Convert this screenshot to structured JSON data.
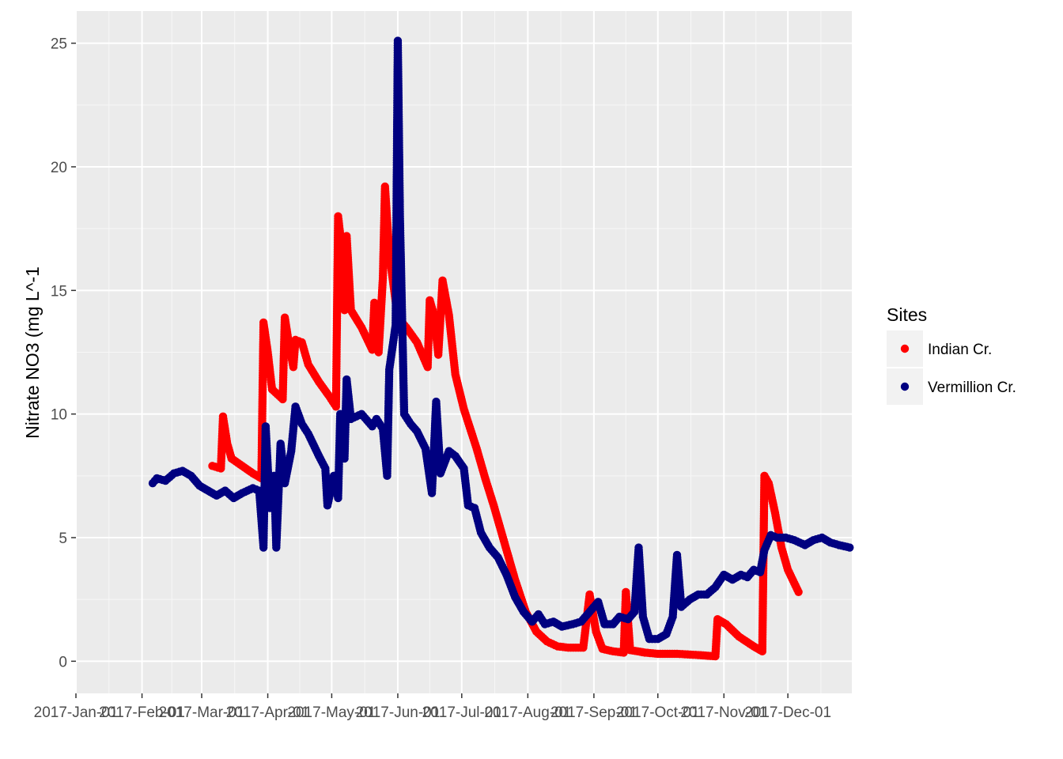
{
  "chart_data": {
    "type": "scatter",
    "title": "",
    "xlabel": "",
    "ylabel": "Nitrate NO3 (mg L^-1",
    "xlim": [
      "2017-01-01",
      "2017-12-31"
    ],
    "ylim": [
      -1.3,
      26.3
    ],
    "grid": true,
    "legend_position": "right",
    "legend_title": "Sites",
    "x_ticks": [
      "2017-Jan-01",
      "2017-Feb-01",
      "2017-Mar-01",
      "2017-Apr-01",
      "2017-May-01",
      "2017-Jun-01",
      "2017-Jul-01",
      "2017-Aug-01",
      "2017-Sep-01",
      "2017-Oct-01",
      "2017-Nov-01",
      "2017-Dec-01"
    ],
    "x_tick_dates": [
      "2017-01-01",
      "2017-02-01",
      "2017-03-01",
      "2017-04-01",
      "2017-05-01",
      "2017-06-01",
      "2017-07-01",
      "2017-08-01",
      "2017-09-01",
      "2017-10-01",
      "2017-11-01",
      "2017-12-01"
    ],
    "y_ticks": [
      0,
      5,
      10,
      15,
      20,
      25
    ],
    "series": [
      {
        "name": "Indian Cr.",
        "color": "#ff0000",
        "points": [
          [
            "2017-03-06",
            7.9
          ],
          [
            "2017-03-10",
            7.8
          ],
          [
            "2017-03-11",
            9.9
          ],
          [
            "2017-03-13",
            8.8
          ],
          [
            "2017-03-15",
            8.2
          ],
          [
            "2017-03-20",
            7.9
          ],
          [
            "2017-03-25",
            7.6
          ],
          [
            "2017-03-29",
            7.4
          ],
          [
            "2017-03-30",
            13.7
          ],
          [
            "2017-04-01",
            12.5
          ],
          [
            "2017-04-03",
            11.0
          ],
          [
            "2017-04-08",
            10.6
          ],
          [
            "2017-04-09",
            13.9
          ],
          [
            "2017-04-11",
            12.8
          ],
          [
            "2017-04-13",
            11.9
          ],
          [
            "2017-04-14",
            13.0
          ],
          [
            "2017-04-17",
            12.9
          ],
          [
            "2017-04-20",
            12.0
          ],
          [
            "2017-04-25",
            11.3
          ],
          [
            "2017-04-30",
            10.7
          ],
          [
            "2017-05-03",
            10.3
          ],
          [
            "2017-05-04",
            18.0
          ],
          [
            "2017-05-06",
            16.5
          ],
          [
            "2017-05-07",
            14.2
          ],
          [
            "2017-05-08",
            17.2
          ],
          [
            "2017-05-10",
            14.2
          ],
          [
            "2017-05-15",
            13.5
          ],
          [
            "2017-05-20",
            12.6
          ],
          [
            "2017-05-21",
            14.5
          ],
          [
            "2017-05-23",
            12.5
          ],
          [
            "2017-05-25",
            15.5
          ],
          [
            "2017-05-26",
            19.2
          ],
          [
            "2017-05-28",
            16.5
          ],
          [
            "2017-06-01",
            13.9
          ],
          [
            "2017-06-05",
            13.5
          ],
          [
            "2017-06-10",
            12.9
          ],
          [
            "2017-06-15",
            11.9
          ],
          [
            "2017-06-16",
            14.6
          ],
          [
            "2017-06-18",
            14.0
          ],
          [
            "2017-06-20",
            12.4
          ],
          [
            "2017-06-22",
            15.4
          ],
          [
            "2017-06-25",
            14.0
          ],
          [
            "2017-06-28",
            11.6
          ],
          [
            "2017-07-02",
            10.2
          ],
          [
            "2017-07-08",
            8.6
          ],
          [
            "2017-07-12",
            7.4
          ],
          [
            "2017-07-16",
            6.3
          ],
          [
            "2017-07-21",
            4.8
          ],
          [
            "2017-07-26",
            3.3
          ],
          [
            "2017-07-31",
            2.0
          ],
          [
            "2017-08-05",
            1.2
          ],
          [
            "2017-08-10",
            0.8
          ],
          [
            "2017-08-15",
            0.6
          ],
          [
            "2017-08-20",
            0.55
          ],
          [
            "2017-08-27",
            0.55
          ],
          [
            "2017-08-30",
            2.7
          ],
          [
            "2017-09-02",
            1.2
          ],
          [
            "2017-09-05",
            0.5
          ],
          [
            "2017-09-10",
            0.4
          ],
          [
            "2017-09-15",
            0.35
          ],
          [
            "2017-09-16",
            2.8
          ],
          [
            "2017-09-18",
            0.45
          ],
          [
            "2017-09-25",
            0.35
          ],
          [
            "2017-10-01",
            0.3
          ],
          [
            "2017-10-10",
            0.3
          ],
          [
            "2017-10-20",
            0.25
          ],
          [
            "2017-10-28",
            0.2
          ],
          [
            "2017-10-29",
            1.7
          ],
          [
            "2017-11-02",
            1.5
          ],
          [
            "2017-11-08",
            1.0
          ],
          [
            "2017-11-15",
            0.6
          ],
          [
            "2017-11-19",
            0.4
          ],
          [
            "2017-11-20",
            7.5
          ],
          [
            "2017-11-22",
            7.2
          ],
          [
            "2017-11-25",
            6.0
          ],
          [
            "2017-11-28",
            4.6
          ],
          [
            "2017-12-01",
            3.7
          ],
          [
            "2017-12-06",
            2.8
          ]
        ]
      },
      {
        "name": "Vermillion Cr.",
        "color": "#000080",
        "points": [
          [
            "2017-02-06",
            7.2
          ],
          [
            "2017-02-08",
            7.4
          ],
          [
            "2017-02-12",
            7.3
          ],
          [
            "2017-02-16",
            7.6
          ],
          [
            "2017-02-20",
            7.7
          ],
          [
            "2017-02-24",
            7.5
          ],
          [
            "2017-02-28",
            7.1
          ],
          [
            "2017-03-04",
            6.9
          ],
          [
            "2017-03-08",
            6.7
          ],
          [
            "2017-03-12",
            6.9
          ],
          [
            "2017-03-16",
            6.6
          ],
          [
            "2017-03-20",
            6.8
          ],
          [
            "2017-03-25",
            7.0
          ],
          [
            "2017-03-28",
            6.9
          ],
          [
            "2017-03-30",
            4.6
          ],
          [
            "2017-03-31",
            9.5
          ],
          [
            "2017-04-02",
            6.2
          ],
          [
            "2017-04-04",
            7.5
          ],
          [
            "2017-04-05",
            4.6
          ],
          [
            "2017-04-07",
            8.8
          ],
          [
            "2017-04-09",
            7.2
          ],
          [
            "2017-04-12",
            8.5
          ],
          [
            "2017-04-14",
            10.3
          ],
          [
            "2017-04-17",
            9.6
          ],
          [
            "2017-04-20",
            9.2
          ],
          [
            "2017-04-25",
            8.3
          ],
          [
            "2017-04-28",
            7.8
          ],
          [
            "2017-04-29",
            6.3
          ],
          [
            "2017-05-02",
            7.5
          ],
          [
            "2017-05-04",
            6.6
          ],
          [
            "2017-05-05",
            10.0
          ],
          [
            "2017-05-07",
            8.2
          ],
          [
            "2017-05-08",
            11.4
          ],
          [
            "2017-05-10",
            9.8
          ],
          [
            "2017-05-15",
            10.0
          ],
          [
            "2017-05-20",
            9.5
          ],
          [
            "2017-05-22",
            9.8
          ],
          [
            "2017-05-25",
            9.4
          ],
          [
            "2017-05-27",
            7.5
          ],
          [
            "2017-05-28",
            11.8
          ],
          [
            "2017-05-31",
            13.6
          ],
          [
            "2017-06-01",
            25.1
          ],
          [
            "2017-06-02",
            18.0
          ],
          [
            "2017-06-04",
            10.0
          ],
          [
            "2017-06-07",
            9.6
          ],
          [
            "2017-06-10",
            9.3
          ],
          [
            "2017-06-14",
            8.6
          ],
          [
            "2017-06-17",
            6.8
          ],
          [
            "2017-06-19",
            10.5
          ],
          [
            "2017-06-21",
            7.6
          ],
          [
            "2017-06-25",
            8.5
          ],
          [
            "2017-06-28",
            8.3
          ],
          [
            "2017-07-02",
            7.8
          ],
          [
            "2017-07-04",
            6.3
          ],
          [
            "2017-07-07",
            6.2
          ],
          [
            "2017-07-10",
            5.2
          ],
          [
            "2017-07-14",
            4.6
          ],
          [
            "2017-07-18",
            4.2
          ],
          [
            "2017-07-22",
            3.5
          ],
          [
            "2017-07-26",
            2.6
          ],
          [
            "2017-07-30",
            2.0
          ],
          [
            "2017-08-03",
            1.6
          ],
          [
            "2017-08-06",
            1.9
          ],
          [
            "2017-08-09",
            1.5
          ],
          [
            "2017-08-13",
            1.6
          ],
          [
            "2017-08-17",
            1.4
          ],
          [
            "2017-08-22",
            1.5
          ],
          [
            "2017-08-26",
            1.6
          ],
          [
            "2017-08-31",
            2.1
          ],
          [
            "2017-09-03",
            2.4
          ],
          [
            "2017-09-06",
            1.5
          ],
          [
            "2017-09-10",
            1.5
          ],
          [
            "2017-09-13",
            1.8
          ],
          [
            "2017-09-17",
            1.7
          ],
          [
            "2017-09-20",
            2.0
          ],
          [
            "2017-09-22",
            4.6
          ],
          [
            "2017-09-24",
            1.8
          ],
          [
            "2017-09-27",
            0.9
          ],
          [
            "2017-10-01",
            0.9
          ],
          [
            "2017-10-05",
            1.1
          ],
          [
            "2017-10-08",
            1.8
          ],
          [
            "2017-10-10",
            4.3
          ],
          [
            "2017-10-12",
            2.2
          ],
          [
            "2017-10-16",
            2.5
          ],
          [
            "2017-10-20",
            2.7
          ],
          [
            "2017-10-24",
            2.7
          ],
          [
            "2017-10-28",
            3.0
          ],
          [
            "2017-11-01",
            3.5
          ],
          [
            "2017-11-05",
            3.3
          ],
          [
            "2017-11-09",
            3.5
          ],
          [
            "2017-11-12",
            3.4
          ],
          [
            "2017-11-15",
            3.7
          ],
          [
            "2017-11-18",
            3.6
          ],
          [
            "2017-11-20",
            4.5
          ],
          [
            "2017-11-23",
            5.1
          ],
          [
            "2017-11-26",
            5.0
          ],
          [
            "2017-11-30",
            5.0
          ],
          [
            "2017-12-04",
            4.9
          ],
          [
            "2017-12-09",
            4.7
          ],
          [
            "2017-12-13",
            4.9
          ],
          [
            "2017-12-17",
            5.0
          ],
          [
            "2017-12-21",
            4.8
          ],
          [
            "2017-12-25",
            4.7
          ],
          [
            "2017-12-30",
            4.6
          ]
        ]
      }
    ]
  }
}
